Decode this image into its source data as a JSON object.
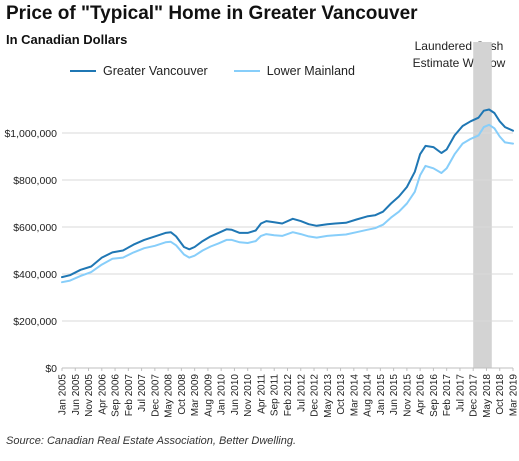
{
  "chart_data": {
    "type": "line",
    "title": "Price of \"Typical\" Home in Greater Vancouver",
    "subtitle": "In Canadian Dollars",
    "annotation": [
      "Laundered Cash",
      "Estimate Window"
    ],
    "source": "Source: Canadian Real Estate Association, Better Dwelling.",
    "xlabel": "",
    "ylabel": "",
    "ylim": [
      0,
      1200000
    ],
    "yticks": [
      0,
      200000,
      400000,
      600000,
      800000,
      1000000
    ],
    "ytick_labels": [
      "$0",
      "$200,000",
      "$400,000",
      "$600,000",
      "$800,000",
      "$1,000,000"
    ],
    "x_start": "Jan 2005",
    "x_end": "Mar 2019",
    "x_tick_labels": [
      "Jan 2005",
      "Jun 2005",
      "Nov 2005",
      "Apr 2006",
      "Sep 2006",
      "Feb 2007",
      "Jul 2007",
      "Dec 2007",
      "May 2008",
      "Oct 2008",
      "Mar 2009",
      "Aug 2009",
      "Jan 2010",
      "Jun 2010",
      "Nov 2010",
      "Apr 2011",
      "Sep 2011",
      "Feb 2012",
      "Jul 2012",
      "Dec 2012",
      "May 2013",
      "Oct 2013",
      "Mar 2014",
      "Aug 2014",
      "Jan 2015",
      "Jun 2015",
      "Nov 2015",
      "Apr 2016",
      "Sep 2016",
      "Feb 2017",
      "Jul 2017",
      "Dec 2017",
      "May 2018",
      "Oct 2018",
      "Mar 2019"
    ],
    "shaded_region": {
      "start": "Dec 2017",
      "end": "Jul 2018",
      "color": "#d3d3d3"
    },
    "grid": "horizontal",
    "legend": "top-left",
    "series": [
      {
        "name": "Greater Vancouver",
        "color": "#1f77b4",
        "points": [
          [
            "Jan 2005",
            387000
          ],
          [
            "Apr 2005",
            395000
          ],
          [
            "Aug 2005",
            418000
          ],
          [
            "Dec 2005",
            432000
          ],
          [
            "Apr 2006",
            470000
          ],
          [
            "Aug 2006",
            492000
          ],
          [
            "Dec 2006",
            500000
          ],
          [
            "Apr 2007",
            525000
          ],
          [
            "Aug 2007",
            545000
          ],
          [
            "Dec 2007",
            560000
          ],
          [
            "Apr 2008",
            575000
          ],
          [
            "Jun 2008",
            578000
          ],
          [
            "Aug 2008",
            560000
          ],
          [
            "Nov 2008",
            515000
          ],
          [
            "Jan 2009",
            505000
          ],
          [
            "Mar 2009",
            515000
          ],
          [
            "Jun 2009",
            540000
          ],
          [
            "Sep 2009",
            560000
          ],
          [
            "Dec 2009",
            575000
          ],
          [
            "Mar 2010",
            590000
          ],
          [
            "May 2010",
            588000
          ],
          [
            "Aug 2010",
            575000
          ],
          [
            "Nov 2010",
            575000
          ],
          [
            "Feb 2011",
            585000
          ],
          [
            "Apr 2011",
            615000
          ],
          [
            "Jun 2011",
            625000
          ],
          [
            "Sep 2011",
            620000
          ],
          [
            "Dec 2011",
            615000
          ],
          [
            "Apr 2012",
            635000
          ],
          [
            "Jul 2012",
            625000
          ],
          [
            "Oct 2012",
            612000
          ],
          [
            "Jan 2013",
            605000
          ],
          [
            "May 2013",
            612000
          ],
          [
            "Aug 2013",
            615000
          ],
          [
            "Dec 2013",
            618000
          ],
          [
            "Apr 2014",
            632000
          ],
          [
            "Aug 2014",
            645000
          ],
          [
            "Nov 2014",
            650000
          ],
          [
            "Feb 2015",
            665000
          ],
          [
            "May 2015",
            700000
          ],
          [
            "Aug 2015",
            730000
          ],
          [
            "Nov 2015",
            770000
          ],
          [
            "Feb 2016",
            835000
          ],
          [
            "Apr 2016",
            910000
          ],
          [
            "Jun 2016",
            945000
          ],
          [
            "Sep 2016",
            940000
          ],
          [
            "Dec 2016",
            915000
          ],
          [
            "Feb 2017",
            930000
          ],
          [
            "May 2017",
            990000
          ],
          [
            "Aug 2017",
            1030000
          ],
          [
            "Nov 2017",
            1050000
          ],
          [
            "Feb 2018",
            1065000
          ],
          [
            "Apr 2018",
            1095000
          ],
          [
            "Jun 2018",
            1100000
          ],
          [
            "Aug 2018",
            1085000
          ],
          [
            "Oct 2018",
            1050000
          ],
          [
            "Dec 2018",
            1025000
          ],
          [
            "Mar 2019",
            1010000
          ]
        ]
      },
      {
        "name": "Lower Mainland",
        "color": "#87cefa",
        "points": [
          [
            "Jan 2005",
            365000
          ],
          [
            "Apr 2005",
            372000
          ],
          [
            "Aug 2005",
            392000
          ],
          [
            "Dec 2005",
            408000
          ],
          [
            "Apr 2006",
            440000
          ],
          [
            "Aug 2006",
            465000
          ],
          [
            "Dec 2006",
            470000
          ],
          [
            "Apr 2007",
            492000
          ],
          [
            "Aug 2007",
            510000
          ],
          [
            "Dec 2007",
            520000
          ],
          [
            "Apr 2008",
            535000
          ],
          [
            "Jun 2008",
            537000
          ],
          [
            "Aug 2008",
            522000
          ],
          [
            "Nov 2008",
            483000
          ],
          [
            "Jan 2009",
            470000
          ],
          [
            "Mar 2009",
            478000
          ],
          [
            "Jun 2009",
            500000
          ],
          [
            "Sep 2009",
            517000
          ],
          [
            "Dec 2009",
            530000
          ],
          [
            "Mar 2010",
            545000
          ],
          [
            "May 2010",
            545000
          ],
          [
            "Aug 2010",
            535000
          ],
          [
            "Nov 2010",
            532000
          ],
          [
            "Feb 2011",
            540000
          ],
          [
            "Apr 2011",
            562000
          ],
          [
            "Jun 2011",
            570000
          ],
          [
            "Sep 2011",
            565000
          ],
          [
            "Dec 2011",
            562000
          ],
          [
            "Apr 2012",
            578000
          ],
          [
            "Jul 2012",
            570000
          ],
          [
            "Oct 2012",
            560000
          ],
          [
            "Jan 2013",
            555000
          ],
          [
            "May 2013",
            562000
          ],
          [
            "Aug 2013",
            565000
          ],
          [
            "Dec 2013",
            568000
          ],
          [
            "Apr 2014",
            578000
          ],
          [
            "Aug 2014",
            588000
          ],
          [
            "Nov 2014",
            595000
          ],
          [
            "Feb 2015",
            610000
          ],
          [
            "May 2015",
            640000
          ],
          [
            "Aug 2015",
            665000
          ],
          [
            "Nov 2015",
            700000
          ],
          [
            "Feb 2016",
            750000
          ],
          [
            "Apr 2016",
            820000
          ],
          [
            "Jun 2016",
            860000
          ],
          [
            "Sep 2016",
            850000
          ],
          [
            "Dec 2016",
            830000
          ],
          [
            "Feb 2017",
            850000
          ],
          [
            "May 2017",
            910000
          ],
          [
            "Aug 2017",
            955000
          ],
          [
            "Nov 2017",
            975000
          ],
          [
            "Feb 2018",
            990000
          ],
          [
            "Apr 2018",
            1025000
          ],
          [
            "Jun 2018",
            1035000
          ],
          [
            "Aug 2018",
            1020000
          ],
          [
            "Oct 2018",
            985000
          ],
          [
            "Dec 2018",
            960000
          ],
          [
            "Mar 2019",
            955000
          ]
        ]
      }
    ]
  }
}
